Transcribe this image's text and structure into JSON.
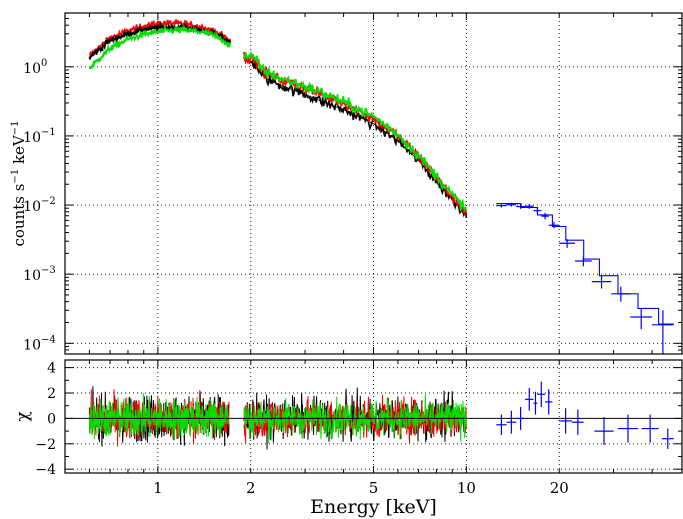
{
  "chart_data": [
    {
      "type": "line",
      "panel": "spectrum",
      "xscale": "log",
      "yscale": "log",
      "xlim": [
        0.5,
        50
      ],
      "ylim": [
        7e-05,
        6
      ],
      "ylabel_parts": [
        "counts s",
        "−1",
        " keV",
        "−1"
      ],
      "xticks": [
        1,
        2,
        5,
        10,
        20
      ],
      "yticks": [
        {
          "value": 1,
          "base": "10",
          "exp": "0"
        },
        {
          "value": 0.1,
          "base": "10",
          "exp": "−1"
        },
        {
          "value": 0.01,
          "base": "10",
          "exp": "−2"
        },
        {
          "value": 0.001,
          "base": "10",
          "exp": "−3"
        },
        {
          "value": 0.0001,
          "base": "10",
          "exp": "−4"
        }
      ],
      "grid": true,
      "colors": {
        "set_black": "#000000",
        "set_red": "#ff0000",
        "set_green": "#00e000",
        "set_blue": "#0000ff"
      },
      "series": [
        {
          "x": [
            0.6,
            0.7,
            0.8,
            0.9,
            1.0,
            1.1,
            1.2,
            1.3,
            1.4,
            1.5,
            1.6,
            1.7,
            1.72
          ],
          "y": [
            1.45,
            2.6,
            3.3,
            3.9,
            4.2,
            4.3,
            4.2,
            4.0,
            3.7,
            3.4,
            2.9,
            2.4,
            2.3
          ],
          "color": "#ff0000",
          "noise": 0.05
        },
        {
          "x": [
            0.6,
            0.7,
            0.8,
            0.9,
            1.0,
            1.1,
            1.2,
            1.3,
            1.4,
            1.5,
            1.6,
            1.7,
            1.72
          ],
          "y": [
            1.35,
            2.4,
            3.0,
            3.45,
            3.65,
            3.75,
            3.7,
            3.55,
            3.3,
            3.05,
            2.7,
            2.25,
            2.2
          ],
          "color": "#000000",
          "noise": 0.05
        },
        {
          "x": [
            0.6,
            0.7,
            0.8,
            0.9,
            1.0,
            1.1,
            1.2,
            1.3,
            1.4,
            1.5,
            1.6,
            1.7,
            1.72
          ],
          "y": [
            0.95,
            1.85,
            2.5,
            2.95,
            3.2,
            3.35,
            3.4,
            3.3,
            3.15,
            2.9,
            2.55,
            2.1,
            2.05
          ],
          "color": "#00e000",
          "noise": 0.05
        },
        {
          "x": [
            1.9,
            2.0,
            2.1,
            2.15,
            2.2,
            2.3,
            2.5,
            3.0,
            3.5,
            4.0,
            5.0,
            6.0,
            7.0,
            8.0,
            9.0,
            10.0
          ],
          "y": [
            1.25,
            1.2,
            1.0,
            0.8,
            0.72,
            0.64,
            0.54,
            0.4,
            0.3,
            0.24,
            0.15,
            0.085,
            0.044,
            0.022,
            0.012,
            0.0075
          ],
          "color": "#000000",
          "noise": 0.08
        },
        {
          "x": [
            1.9,
            2.0,
            2.1,
            2.15,
            2.2,
            2.3,
            2.5,
            3.0,
            3.5,
            4.0,
            5.0,
            6.0,
            7.0,
            8.0,
            9.0,
            10.0
          ],
          "y": [
            1.4,
            1.35,
            1.15,
            0.95,
            0.86,
            0.77,
            0.65,
            0.5,
            0.38,
            0.3,
            0.18,
            0.1,
            0.05,
            0.025,
            0.013,
            0.008
          ],
          "color": "#ff0000",
          "noise": 0.08
        },
        {
          "x": [
            1.9,
            2.0,
            2.1,
            2.15,
            2.2,
            2.3,
            2.5,
            3.0,
            3.5,
            4.0,
            5.0,
            6.0,
            7.0,
            8.0,
            9.0,
            10.0
          ],
          "y": [
            1.45,
            1.4,
            1.2,
            1.0,
            0.9,
            0.8,
            0.68,
            0.52,
            0.4,
            0.31,
            0.19,
            0.105,
            0.052,
            0.026,
            0.014,
            0.0085
          ],
          "color": "#00e000",
          "noise": 0.08
        }
      ],
      "blue_points": [
        {
          "x0": 12.5,
          "x1": 13.5,
          "y": 0.0098,
          "ylo": 0.0092,
          "yhi": 0.0105
        },
        {
          "x0": 13.5,
          "x1": 14.5,
          "y": 0.0101,
          "ylo": 0.0095,
          "yhi": 0.0108
        },
        {
          "x0": 14.5,
          "x1": 15.5,
          "y": 0.0095,
          "ylo": 0.0088,
          "yhi": 0.0102
        },
        {
          "x0": 15.5,
          "x1": 16.5,
          "y": 0.0096,
          "ylo": 0.0088,
          "yhi": 0.0104
        },
        {
          "x0": 16.5,
          "x1": 17.5,
          "y": 0.0083,
          "ylo": 0.0075,
          "yhi": 0.0092
        },
        {
          "x0": 17.5,
          "x1": 18.5,
          "y": 0.0069,
          "ylo": 0.0062,
          "yhi": 0.0077
        },
        {
          "x0": 18.5,
          "x1": 20.0,
          "y": 0.0051,
          "ylo": 0.0046,
          "yhi": 0.0057
        },
        {
          "x0": 20.0,
          "x1": 22.5,
          "y": 0.0028,
          "ylo": 0.0024,
          "yhi": 0.0032
        },
        {
          "x0": 22.5,
          "x1": 25.5,
          "y": 0.00155,
          "ylo": 0.0013,
          "yhi": 0.0018
        },
        {
          "x0": 25.5,
          "x1": 29.5,
          "y": 0.00078,
          "ylo": 0.00062,
          "yhi": 0.00095
        },
        {
          "x0": 29.5,
          "x1": 34.0,
          "y": 0.00052,
          "ylo": 0.0004,
          "yhi": 0.00066
        },
        {
          "x0": 34.0,
          "x1": 40.0,
          "y": 0.00024,
          "ylo": 0.00016,
          "yhi": 0.00032
        },
        {
          "x0": 40.0,
          "x1": 47.0,
          "y": 0.000185,
          "ylo": 7e-05,
          "yhi": 0.0003
        }
      ],
      "blue_model": [
        {
          "x0": 12.5,
          "x1": 15.0,
          "y": 0.0105
        },
        {
          "x0": 15.0,
          "x1": 17.0,
          "y": 0.0092
        },
        {
          "x0": 17.0,
          "x1": 19.0,
          "y": 0.0072
        },
        {
          "x0": 19.0,
          "x1": 21.0,
          "y": 0.0049
        },
        {
          "x0": 21.0,
          "x1": 24.0,
          "y": 0.0031
        },
        {
          "x0": 24.0,
          "x1": 27.0,
          "y": 0.00165
        },
        {
          "x0": 27.0,
          "x1": 31.0,
          "y": 0.00095
        },
        {
          "x0": 31.0,
          "x1": 36.0,
          "y": 0.00052
        },
        {
          "x0": 36.0,
          "x1": 42.0,
          "y": 0.00032
        },
        {
          "x0": 42.0,
          "x1": 47.0,
          "y": 0.00019
        }
      ]
    },
    {
      "type": "scatter",
      "panel": "residuals",
      "xscale": "log",
      "xlim": [
        0.5,
        50
      ],
      "ylim": [
        -4.3,
        4.6
      ],
      "ylabel": "χ",
      "xlabel": "Energy [keV]",
      "xticks": [
        1,
        2,
        5,
        10,
        20
      ],
      "yticks": [
        -4,
        -2,
        0,
        2,
        4
      ],
      "grid": true,
      "residual_ranges": [
        {
          "x0": 0.6,
          "x1": 1.7,
          "color": "#000000",
          "amp": 1.6
        },
        {
          "x0": 0.6,
          "x1": 1.7,
          "color": "#ff0000",
          "amp": 1.5
        },
        {
          "x0": 0.6,
          "x1": 1.7,
          "color": "#00e000",
          "amp": 1.4
        },
        {
          "x0": 1.9,
          "x1": 10.0,
          "color": "#000000",
          "amp": 1.5
        },
        {
          "x0": 1.9,
          "x1": 10.0,
          "color": "#ff0000",
          "amp": 1.4
        },
        {
          "x0": 1.9,
          "x1": 10.0,
          "color": "#00e000",
          "amp": 1.3
        }
      ],
      "blue_residuals": [
        {
          "x0": 12.5,
          "x1": 13.5,
          "y": -0.5,
          "err": 0.8
        },
        {
          "x0": 13.5,
          "x1": 14.5,
          "y": -0.3,
          "err": 0.9
        },
        {
          "x0": 14.5,
          "x1": 15.5,
          "y": 0.0,
          "err": 0.9
        },
        {
          "x0": 15.5,
          "x1": 16.5,
          "y": 1.5,
          "err": 0.9
        },
        {
          "x0": 16.5,
          "x1": 17.0,
          "y": 1.2,
          "err": 0.9
        },
        {
          "x0": 17.0,
          "x1": 18.0,
          "y": 1.9,
          "err": 1.0
        },
        {
          "x0": 18.0,
          "x1": 19.0,
          "y": 1.3,
          "err": 1.0
        },
        {
          "x0": 20.0,
          "x1": 22.0,
          "y": -0.2,
          "err": 1.0
        },
        {
          "x0": 22.0,
          "x1": 24.0,
          "y": -0.3,
          "err": 1.0
        },
        {
          "x0": 26.0,
          "x1": 30.0,
          "y": -1.0,
          "err": 1.1
        },
        {
          "x0": 31.0,
          "x1": 36.0,
          "y": -0.8,
          "err": 1.1
        },
        {
          "x0": 37.0,
          "x1": 42.0,
          "y": -0.8,
          "err": 1.1
        },
        {
          "x0": 43.0,
          "x1": 47.0,
          "y": -1.6,
          "err": 0.8
        }
      ]
    }
  ]
}
